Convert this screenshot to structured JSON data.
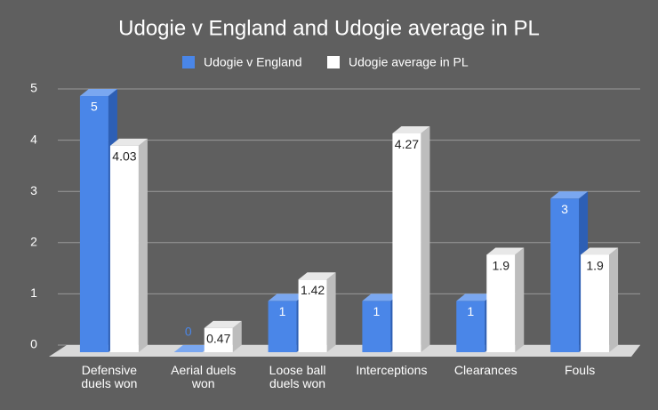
{
  "chart_data": {
    "type": "bar3d",
    "title": "Udogie v England and Udogie average in PL",
    "categories": [
      "Defensive duels won",
      "Aerial duels won",
      "Loose ball duels won",
      "Interceptions",
      "Clearances",
      "Fouls"
    ],
    "series": [
      {
        "name": "Udogie v England",
        "color": "#4a86e8",
        "values": [
          5,
          0,
          1,
          1,
          1,
          3
        ]
      },
      {
        "name": "Udogie average in PL",
        "color": "#ffffff",
        "values": [
          4.03,
          0.47,
          1.42,
          4.27,
          1.9,
          1.9
        ]
      }
    ],
    "ylim": [
      0,
      5
    ],
    "yticks": [
      0,
      1,
      2,
      3,
      4,
      5
    ],
    "grid": true,
    "legend": "top"
  }
}
